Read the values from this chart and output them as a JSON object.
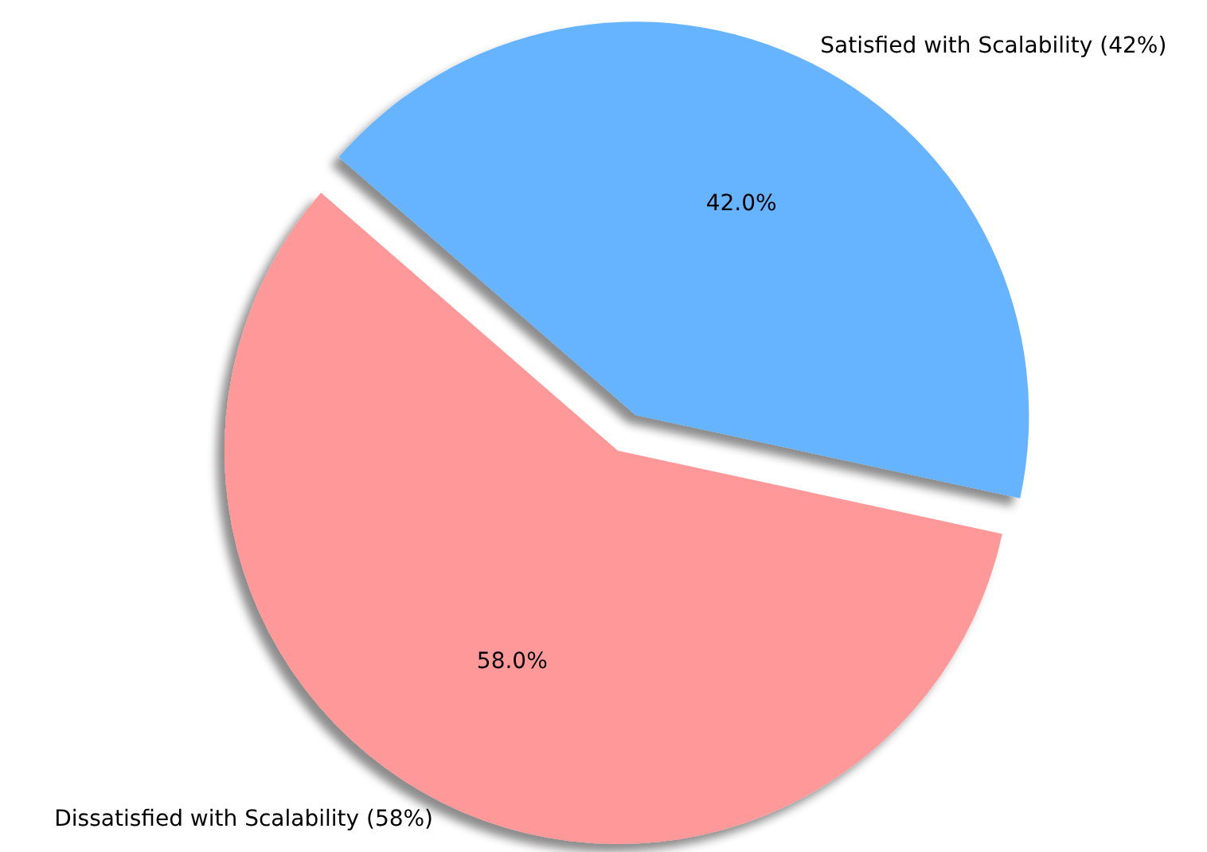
{
  "chart_data": {
    "type": "pie",
    "categories": [
      "Satisfied with Scalability (42%)",
      "Dissatisfied with Scalability (58%)"
    ],
    "values": [
      42,
      58
    ],
    "colors": [
      "#66b3ff",
      "#ff9999"
    ],
    "value_labels": [
      "42.0%",
      "58.0%"
    ],
    "legend": false
  }
}
